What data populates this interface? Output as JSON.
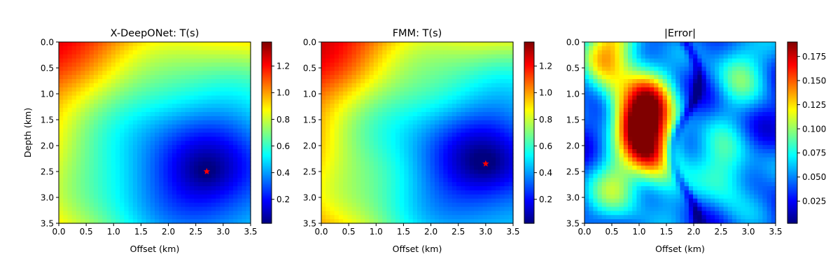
{
  "chart_data": [
    {
      "type": "heatmap",
      "title": "X-DeepONet: T(s)",
      "xlabel": "Offset (km)",
      "ylabel": "Depth (km)",
      "xlim": [
        0.0,
        3.5
      ],
      "ylim": [
        3.5,
        0.0
      ],
      "x_ticks": [
        "0.0",
        "0.5",
        "1.0",
        "1.5",
        "2.0",
        "2.5",
        "3.0",
        "3.5"
      ],
      "y_ticks": [
        "0.0",
        "0.5",
        "1.0",
        "1.5",
        "2.0",
        "2.5",
        "3.0",
        "3.5"
      ],
      "colormap": "jet",
      "colorbar": {
        "range": [
          0.02,
          1.38
        ],
        "ticks": [
          "0.2",
          "0.4",
          "0.6",
          "0.8",
          "1.0",
          "1.2"
        ]
      },
      "source": {
        "x": 2.7,
        "y": 2.5,
        "marker": "star",
        "color": "#ff0000"
      }
    },
    {
      "type": "heatmap",
      "title": "FMM: T(s)",
      "xlabel": "Offset (km)",
      "ylabel": "",
      "xlim": [
        0.0,
        3.5
      ],
      "ylim": [
        3.5,
        0.0
      ],
      "x_ticks": [
        "0.0",
        "0.5",
        "1.0",
        "1.5",
        "2.0",
        "2.5",
        "3.0",
        "3.5"
      ],
      "y_ticks": [
        "0.0",
        "0.5",
        "1.0",
        "1.5",
        "2.0",
        "2.5",
        "3.0",
        "3.5"
      ],
      "colormap": "jet",
      "colorbar": {
        "range": [
          0.02,
          1.38
        ],
        "ticks": [
          "0.2",
          "0.4",
          "0.6",
          "0.8",
          "1.0",
          "1.2"
        ]
      },
      "source": {
        "x": 3.0,
        "y": 2.35,
        "marker": "star",
        "color": "#ff0000"
      }
    },
    {
      "type": "heatmap",
      "title": "|Error|",
      "xlabel": "Offset (km)",
      "ylabel": "",
      "xlim": [
        0.0,
        3.5
      ],
      "ylim": [
        3.5,
        0.0
      ],
      "x_ticks": [
        "0.0",
        "0.5",
        "1.0",
        "1.5",
        "2.0",
        "2.5",
        "3.0",
        "3.5"
      ],
      "y_ticks": [
        "0.0",
        "0.5",
        "1.0",
        "1.5",
        "2.0",
        "2.5",
        "3.0",
        "3.5"
      ],
      "colormap": "jet",
      "colorbar": {
        "range": [
          0.002,
          0.19
        ],
        "ticks": [
          "0.025",
          "0.050",
          "0.075",
          "0.100",
          "0.125",
          "0.150",
          "0.175"
        ]
      },
      "hotspots": [
        {
          "x": 1.1,
          "y": 1.3,
          "value": 0.18
        },
        {
          "x": 0.5,
          "y": 0.1,
          "value": 0.13
        },
        {
          "x": 1.3,
          "y": 2.0,
          "value": 0.12
        },
        {
          "x": 0.6,
          "y": 2.8,
          "value": 0.1
        },
        {
          "x": 2.8,
          "y": 0.5,
          "value": 0.09
        },
        {
          "x": 2.6,
          "y": 2.5,
          "value": 0.1
        }
      ]
    }
  ]
}
